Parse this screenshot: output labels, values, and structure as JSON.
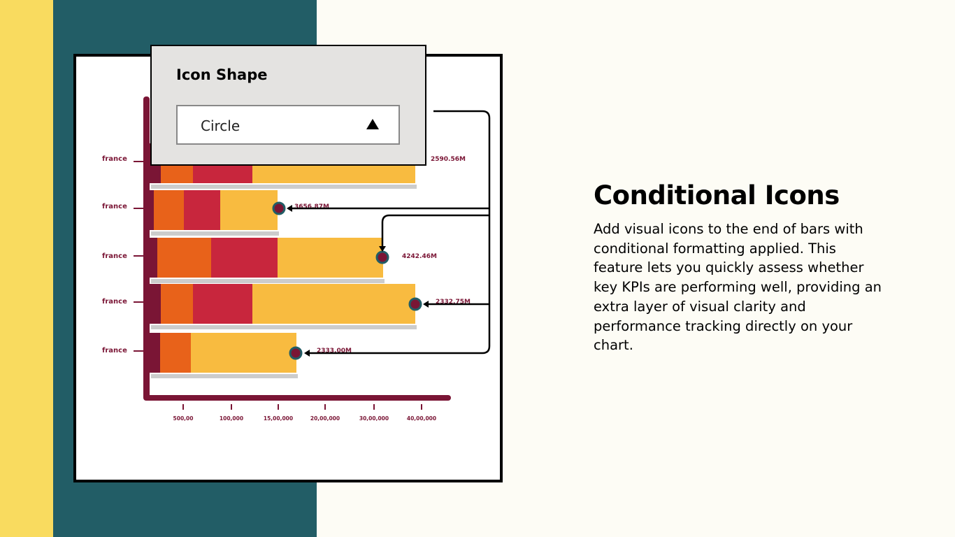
{
  "panel": {
    "title": "Icon Shape",
    "selected": "Circle"
  },
  "chart": {
    "rows": [
      {
        "category": "france",
        "value_label": "2590.56M"
      },
      {
        "category": "france",
        "value_label": "3656.87M"
      },
      {
        "category": "france",
        "value_label": "4242.46M"
      },
      {
        "category": "france",
        "value_label": "2332.75M"
      },
      {
        "category": "france",
        "value_label": "2333.00M"
      }
    ],
    "x_tick_labels": [
      "500,00",
      "100,000",
      "15,00,000",
      "20,00,000",
      "30,00,000",
      "40,00,000"
    ]
  },
  "feature": {
    "heading": "Conditional Icons",
    "body": "Add visual icons to the end of bars with conditional formatting applied. This feature lets you quickly assess whether key KPIs are performing well, providing an extra layer of visual clarity and performance tracking directly on your chart."
  }
}
